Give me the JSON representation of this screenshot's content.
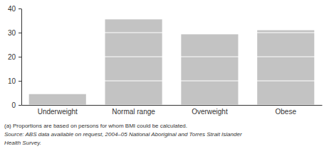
{
  "chart_data": {
    "type": "bar",
    "categories": [
      "Underweight",
      "Normal range",
      "Overweight",
      "Obese"
    ],
    "values": [
      4.5,
      35.5,
      29.3,
      31
    ],
    "color": "#c3c3c3",
    "ylim": [
      0,
      40
    ],
    "yticks": [
      0,
      10,
      20,
      30,
      40
    ],
    "grid": true,
    "annotations": [
      "(a) Proportions are based on persons for whom BMI could be calculated.",
      "Source: ABS data available on request, 2004–05 National Aboriginal and Torres Strait Islander",
      "Health Survey."
    ]
  }
}
